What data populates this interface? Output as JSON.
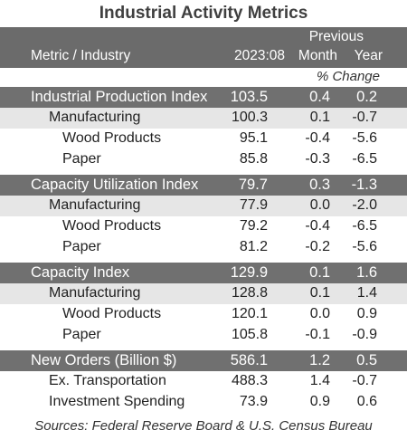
{
  "title": "Industrial Activity Metrics",
  "header": {
    "metric": "Metric / Industry",
    "period": "2023:08",
    "previous": "Previous",
    "month": "Month",
    "year": "Year",
    "pct_change": "% Change"
  },
  "groups": [
    {
      "name": "Industrial Production Index",
      "value": "103.5",
      "month": "0.4",
      "year": "0.2",
      "rows": [
        {
          "name": "Manufacturing",
          "value": "100.3",
          "month": "0.1",
          "year": "-0.7"
        },
        {
          "name": "Wood Products",
          "value": "95.1",
          "month": "-0.4",
          "year": "-5.6"
        },
        {
          "name": "Paper",
          "value": "85.8",
          "month": "-0.3",
          "year": "-6.5"
        }
      ]
    },
    {
      "name": "Capacity Utilization Index",
      "value": "79.7",
      "month": "0.3",
      "year": "-1.3",
      "rows": [
        {
          "name": "Manufacturing",
          "value": "77.9",
          "month": "0.0",
          "year": "-2.0"
        },
        {
          "name": "Wood Products",
          "value": "79.2",
          "month": "-0.4",
          "year": "-6.5"
        },
        {
          "name": "Paper",
          "value": "81.2",
          "month": "-0.2",
          "year": "-5.6"
        }
      ]
    },
    {
      "name": "Capacity Index",
      "value": "129.9",
      "month": "0.1",
      "year": "1.6",
      "rows": [
        {
          "name": "Manufacturing",
          "value": "128.8",
          "month": "0.1",
          "year": "1.4"
        },
        {
          "name": "Wood Products",
          "value": "120.1",
          "month": "0.0",
          "year": "0.9"
        },
        {
          "name": "Paper",
          "value": "105.8",
          "month": "-0.1",
          "year": "-0.9"
        }
      ]
    },
    {
      "name": "New Orders (Billion $)",
      "value": "586.1",
      "month": "1.2",
      "year": "0.5",
      "rows": [
        {
          "name": "Ex. Transportation",
          "value": "488.3",
          "month": "1.4",
          "year": "-0.7"
        },
        {
          "name": "Investment Spending",
          "value": "73.9",
          "month": "0.9",
          "year": "0.6"
        }
      ]
    }
  ],
  "source": "Sources: Federal Reserve Board & U.S. Census Bureau"
}
